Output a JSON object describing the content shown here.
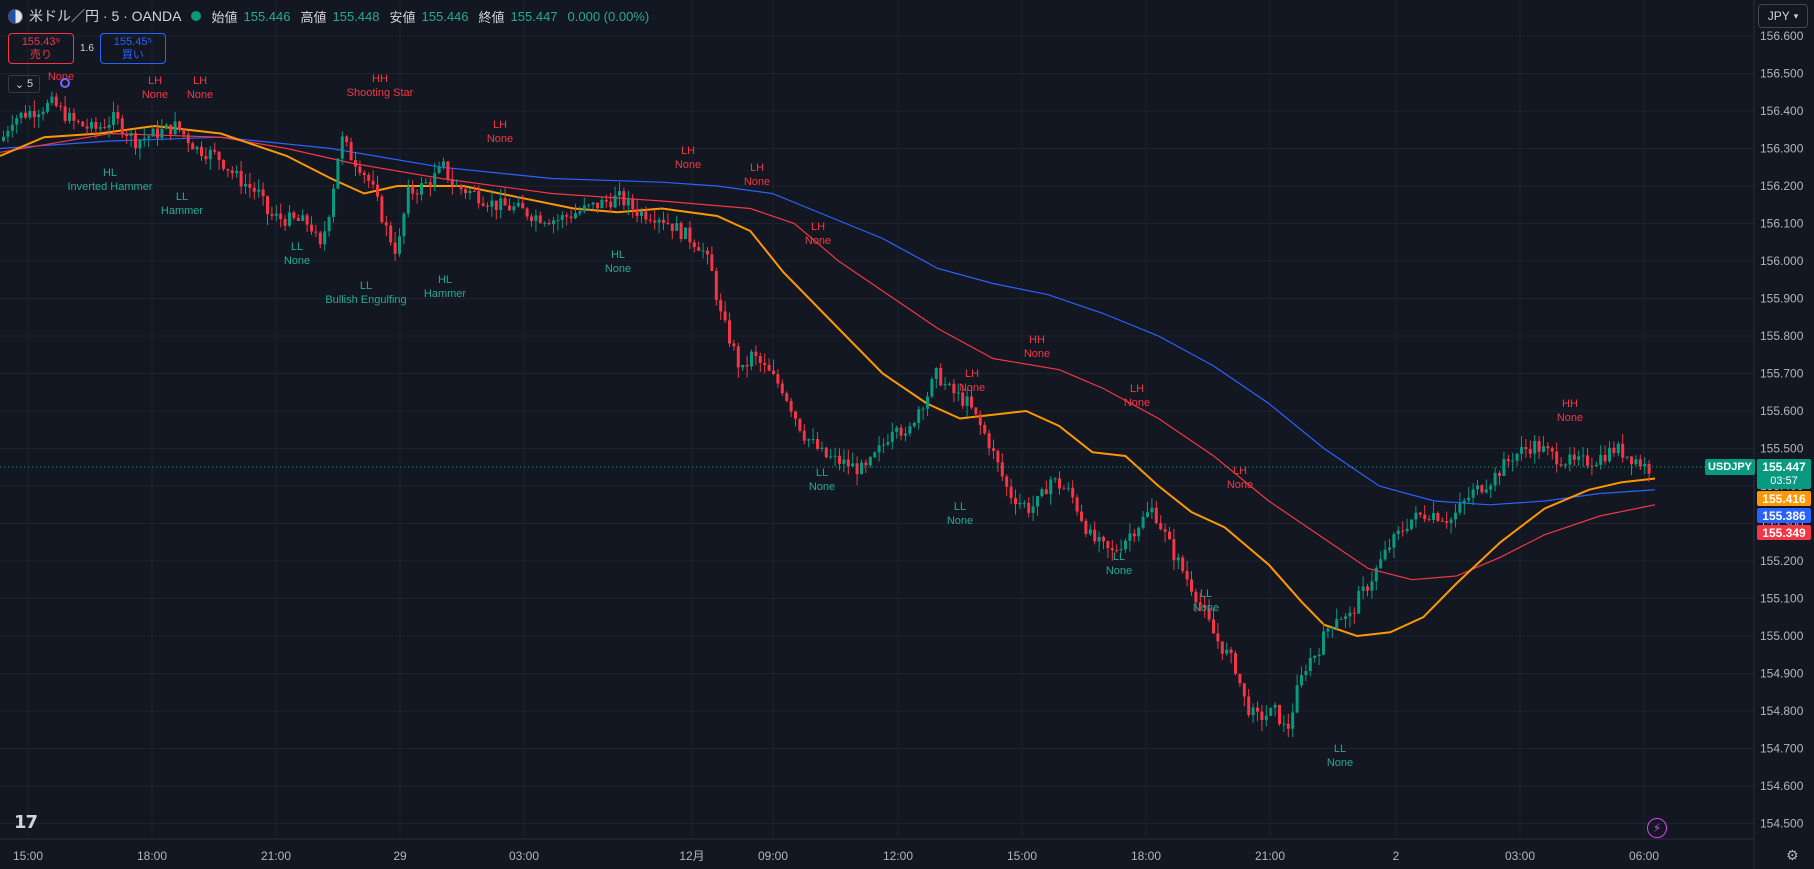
{
  "header": {
    "symbol": "米ドル／円 · 5 · OANDA",
    "open_label": "始値",
    "open": "155.446",
    "high_label": "高値",
    "high": "155.448",
    "low_label": "安値",
    "low": "155.446",
    "close_label": "終値",
    "close": "155.447",
    "change": "0.000 (0.00%)"
  },
  "trade": {
    "sell_price": "155.43⁹",
    "sell_label": "売り",
    "spread": "1.6",
    "buy_price": "155.45⁵",
    "buy_label": "買い"
  },
  "interval": {
    "value": "5"
  },
  "currency": {
    "value": "JPY"
  },
  "price_axis": {
    "ticks": [
      "156.600",
      "156.500",
      "156.400",
      "156.300",
      "156.200",
      "156.100",
      "156.000",
      "155.900",
      "155.800",
      "155.700",
      "155.600",
      "155.500",
      "155.400",
      "155.300",
      "155.200",
      "155.100",
      "155.000",
      "154.900",
      "154.800",
      "154.700",
      "154.600",
      "154.500"
    ]
  },
  "time_axis": {
    "ticks": [
      "15:00",
      "18:00",
      "21:00",
      "29",
      "03:00",
      "12月",
      "09:00",
      "12:00",
      "15:00",
      "18:00",
      "21:00",
      "2",
      "03:00",
      "06:00"
    ]
  },
  "price_tags": {
    "symbol": "USDJPY",
    "last": "155.447",
    "countdown": "03:57",
    "ema_orange": "155.416",
    "ema_blue": "155.386",
    "ema_red": "155.349"
  },
  "colors": {
    "background": "#131722",
    "up": "#089981",
    "down": "#f23645",
    "orange": "#ff9800",
    "blue": "#2962ff",
    "red": "#f23645"
  },
  "chart_data": {
    "type": "candlestick",
    "ylim": [
      154.45,
      156.63
    ],
    "pivot_labels": [
      {
        "t": "None",
        "c": "red"
      },
      {
        "t": "LH",
        "c": "red"
      },
      {
        "t": "None",
        "c": "red"
      },
      {
        "t": "HH",
        "c": "red"
      },
      {
        "t": "Shooting Star",
        "c": "red"
      },
      {
        "t": "HL",
        "c": "green"
      },
      {
        "t": "Inverted Hammer",
        "c": "green"
      },
      {
        "t": "LL",
        "c": "green"
      },
      {
        "t": "Hammer",
        "c": "green"
      },
      {
        "t": "Bullish Engulfing",
        "c": "green"
      },
      {
        "t": "LH"
      },
      {
        "t": "HL"
      }
    ],
    "series_points": {
      "orange": [
        [
          0,
          156.28
        ],
        [
          40,
          156.33
        ],
        [
          90,
          156.34
        ],
        [
          140,
          156.36
        ],
        [
          200,
          156.34
        ],
        [
          260,
          156.28
        ],
        [
          300,
          156.22
        ],
        [
          330,
          156.18
        ],
        [
          360,
          156.2
        ],
        [
          420,
          156.2
        ],
        [
          470,
          156.17
        ],
        [
          520,
          156.14
        ],
        [
          560,
          156.13
        ],
        [
          600,
          156.14
        ],
        [
          650,
          156.12
        ],
        [
          680,
          156.08
        ],
        [
          710,
          155.97
        ],
        [
          760,
          155.82
        ],
        [
          800,
          155.7
        ],
        [
          840,
          155.62
        ],
        [
          870,
          155.58
        ],
        [
          900,
          155.59
        ],
        [
          930,
          155.6
        ],
        [
          960,
          155.56
        ],
        [
          990,
          155.49
        ],
        [
          1020,
          155.48
        ],
        [
          1050,
          155.4
        ],
        [
          1080,
          155.33
        ],
        [
          1110,
          155.29
        ],
        [
          1150,
          155.19
        ],
        [
          1180,
          155.09
        ],
        [
          1200,
          155.03
        ],
        [
          1230,
          155.0
        ],
        [
          1260,
          155.01
        ],
        [
          1290,
          155.05
        ],
        [
          1320,
          155.14
        ],
        [
          1360,
          155.25
        ],
        [
          1400,
          155.34
        ],
        [
          1440,
          155.39
        ],
        [
          1470,
          155.41
        ],
        [
          1500,
          155.42
        ]
      ],
      "blue": [
        [
          0,
          156.3
        ],
        [
          100,
          156.32
        ],
        [
          200,
          156.33
        ],
        [
          300,
          156.3
        ],
        [
          400,
          156.25
        ],
        [
          500,
          156.22
        ],
        [
          600,
          156.21
        ],
        [
          650,
          156.2
        ],
        [
          700,
          156.18
        ],
        [
          750,
          156.12
        ],
        [
          800,
          156.06
        ],
        [
          850,
          155.98
        ],
        [
          900,
          155.94
        ],
        [
          950,
          155.91
        ],
        [
          1000,
          155.86
        ],
        [
          1050,
          155.8
        ],
        [
          1100,
          155.72
        ],
        [
          1150,
          155.62
        ],
        [
          1200,
          155.5
        ],
        [
          1250,
          155.4
        ],
        [
          1300,
          155.36
        ],
        [
          1350,
          155.35
        ],
        [
          1400,
          155.36
        ],
        [
          1450,
          155.38
        ],
        [
          1500,
          155.39
        ]
      ],
      "red": [
        [
          0,
          156.29
        ],
        [
          100,
          156.34
        ],
        [
          200,
          156.33
        ],
        [
          260,
          156.3
        ],
        [
          320,
          156.26
        ],
        [
          400,
          156.22
        ],
        [
          500,
          156.18
        ],
        [
          600,
          156.16
        ],
        [
          680,
          156.14
        ],
        [
          720,
          156.1
        ],
        [
          760,
          156.0
        ],
        [
          800,
          155.92
        ],
        [
          850,
          155.82
        ],
        [
          900,
          155.74
        ],
        [
          960,
          155.71
        ],
        [
          1000,
          155.66
        ],
        [
          1050,
          155.58
        ],
        [
          1100,
          155.48
        ],
        [
          1150,
          155.36
        ],
        [
          1200,
          155.26
        ],
        [
          1240,
          155.18
        ],
        [
          1280,
          155.15
        ],
        [
          1320,
          155.16
        ],
        [
          1360,
          155.21
        ],
        [
          1400,
          155.27
        ],
        [
          1450,
          155.32
        ],
        [
          1500,
          155.35
        ]
      ]
    },
    "price_path": [
      [
        0,
        156.32
      ],
      [
        10,
        156.38
      ],
      [
        30,
        156.4
      ],
      [
        50,
        156.42
      ],
      [
        70,
        156.37
      ],
      [
        90,
        156.35
      ],
      [
        110,
        156.38
      ],
      [
        130,
        156.32
      ],
      [
        150,
        156.34
      ],
      [
        170,
        156.36
      ],
      [
        190,
        156.3
      ],
      [
        210,
        156.28
      ],
      [
        230,
        156.22
      ],
      [
        250,
        156.18
      ],
      [
        260,
        156.12
      ],
      [
        280,
        156.11
      ],
      [
        300,
        156.1
      ],
      [
        310,
        156.03
      ],
      [
        320,
        156.15
      ],
      [
        330,
        156.33
      ],
      [
        340,
        156.28
      ],
      [
        350,
        156.25
      ],
      [
        360,
        156.2
      ],
      [
        375,
        156.08
      ],
      [
        385,
        156.02
      ],
      [
        395,
        156.18
      ],
      [
        410,
        156.2
      ],
      [
        420,
        156.22
      ],
      [
        430,
        156.25
      ],
      [
        440,
        156.2
      ],
      [
        460,
        156.18
      ],
      [
        480,
        156.15
      ],
      [
        500,
        156.14
      ],
      [
        520,
        156.12
      ],
      [
        540,
        156.11
      ],
      [
        560,
        156.13
      ],
      [
        580,
        156.15
      ],
      [
        600,
        156.17
      ],
      [
        620,
        156.13
      ],
      [
        640,
        156.12
      ],
      [
        660,
        156.08
      ],
      [
        680,
        156.04
      ],
      [
        690,
        155.98
      ],
      [
        700,
        155.85
      ],
      [
        710,
        155.78
      ],
      [
        720,
        155.7
      ],
      [
        730,
        155.75
      ],
      [
        740,
        155.72
      ],
      [
        760,
        155.66
      ],
      [
        780,
        155.54
      ],
      [
        800,
        155.48
      ],
      [
        820,
        155.46
      ],
      [
        840,
        155.44
      ],
      [
        860,
        155.52
      ],
      [
        870,
        155.58
      ],
      [
        880,
        155.52
      ],
      [
        890,
        155.6
      ],
      [
        900,
        155.64
      ],
      [
        910,
        155.7
      ],
      [
        920,
        155.66
      ],
      [
        940,
        155.62
      ],
      [
        960,
        155.52
      ],
      [
        980,
        155.38
      ],
      [
        1000,
        155.34
      ],
      [
        1010,
        155.36
      ],
      [
        1020,
        155.42
      ],
      [
        1040,
        155.38
      ],
      [
        1060,
        155.26
      ],
      [
        1080,
        155.22
      ],
      [
        1100,
        155.28
      ],
      [
        1120,
        155.34
      ],
      [
        1140,
        155.22
      ],
      [
        1160,
        155.12
      ],
      [
        1180,
        155.0
      ],
      [
        1200,
        154.92
      ],
      [
        1210,
        154.82
      ],
      [
        1220,
        154.78
      ],
      [
        1240,
        154.8
      ],
      [
        1250,
        154.74
      ],
      [
        1260,
        154.85
      ],
      [
        1270,
        154.93
      ],
      [
        1280,
        154.96
      ],
      [
        1290,
        155.02
      ],
      [
        1300,
        155.06
      ],
      [
        1310,
        155.04
      ],
      [
        1320,
        155.1
      ],
      [
        1330,
        155.14
      ],
      [
        1350,
        155.24
      ],
      [
        1370,
        155.31
      ],
      [
        1390,
        155.33
      ],
      [
        1410,
        155.31
      ],
      [
        1430,
        155.38
      ],
      [
        1450,
        155.42
      ],
      [
        1470,
        155.48
      ],
      [
        1490,
        155.51
      ],
      [
        1510,
        155.48
      ],
      [
        1530,
        155.46
      ],
      [
        1550,
        155.47
      ],
      [
        1570,
        155.5
      ],
      [
        1590,
        155.47
      ],
      [
        1600,
        155.45
      ],
      [
        1605,
        155.447
      ]
    ]
  }
}
